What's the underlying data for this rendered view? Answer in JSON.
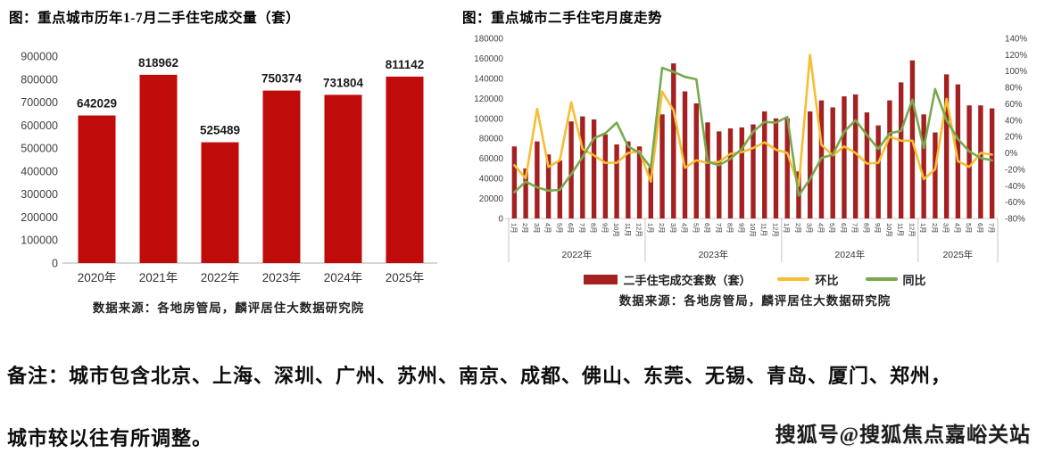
{
  "chart_data": [
    {
      "type": "bar",
      "title": "图：重点城市历年1-7月二手住宅成交量（套）",
      "categories": [
        "2020年",
        "2021年",
        "2022年",
        "2023年",
        "2024年",
        "2025年"
      ],
      "values": [
        642029,
        818962,
        525489,
        750374,
        731804,
        811142
      ],
      "ylim": [
        0,
        900000
      ],
      "ytick_step": 100000,
      "bar_color": "#c00b0b",
      "grid": "off",
      "source": "数据来源：各地房管局，麟评居住大数据研究院"
    },
    {
      "type": "bar+line",
      "title": "图：重点城市二手住宅月度走势",
      "years": [
        {
          "label": "2022年",
          "months": 12
        },
        {
          "label": "2023年",
          "months": 12
        },
        {
          "label": "2024年",
          "months": 12
        },
        {
          "label": "2025年",
          "months": 7
        }
      ],
      "month_labels": [
        "1月",
        "2月",
        "3月",
        "4月",
        "5月",
        "6月",
        "7月",
        "8月",
        "9月",
        "10月",
        "11月",
        "12月"
      ],
      "left_axis": {
        "min": 0,
        "max": 180000,
        "step": 20000
      },
      "right_axis": {
        "min": -80,
        "max": 140,
        "step": 20,
        "suffix": "%"
      },
      "grid": "off",
      "legend_position": "bottom",
      "series": [
        {
          "name": "二手住宅成交套数（套）",
          "type": "bar",
          "axis": "left",
          "color": "#a52121",
          "values": [
            72000,
            50000,
            77000,
            64000,
            58000,
            97000,
            102000,
            99000,
            84000,
            74000,
            77000,
            72000,
            51000,
            104000,
            155000,
            127000,
            115000,
            96000,
            87000,
            90000,
            91000,
            94000,
            107000,
            100000,
            100000,
            47000,
            107000,
            118000,
            111000,
            122000,
            124000,
            106000,
            93000,
            118000,
            136000,
            158000,
            104000,
            86000,
            144000,
            134000,
            113000,
            113000,
            110000
          ]
        },
        {
          "name": "环比",
          "type": "line",
          "axis": "right",
          "color": "#f5be33",
          "values": [
            -15,
            -31,
            54,
            -17,
            -9,
            62,
            5,
            -3,
            -12,
            -12,
            0,
            2,
            -35,
            75,
            52,
            -18,
            -9,
            -12,
            -11,
            -1,
            1,
            6,
            13,
            4,
            0,
            -40,
            120,
            10,
            -3,
            8,
            0,
            -13,
            -12,
            20,
            15,
            15,
            -32,
            -20,
            66,
            -10,
            -17,
            0,
            -2
          ]
        },
        {
          "name": "同比",
          "type": "line",
          "axis": "right",
          "color": "#78a94e",
          "values": [
            -48,
            -35,
            -42,
            -46,
            -45,
            -26,
            -5,
            18,
            24,
            37,
            8,
            0,
            -18,
            104,
            99,
            93,
            90,
            -11,
            -15,
            -7,
            5,
            26,
            38,
            37,
            44,
            -52,
            -32,
            -6,
            -2,
            26,
            40,
            22,
            5,
            24,
            27,
            65,
            6,
            78,
            40,
            17,
            2,
            -6,
            -9
          ]
        }
      ],
      "source": "数据来源：各地房管局，麟评居住大数据研究院"
    }
  ],
  "note": {
    "line1": "备注：城市包含北京、上海、深圳、广州、苏州、南京、成都、佛山、东莞、无锡、青岛、厦门、郑州，",
    "line2": "城市较以往有所调整。"
  },
  "watermark": "搜狐号@搜狐焦点嘉峪关站"
}
